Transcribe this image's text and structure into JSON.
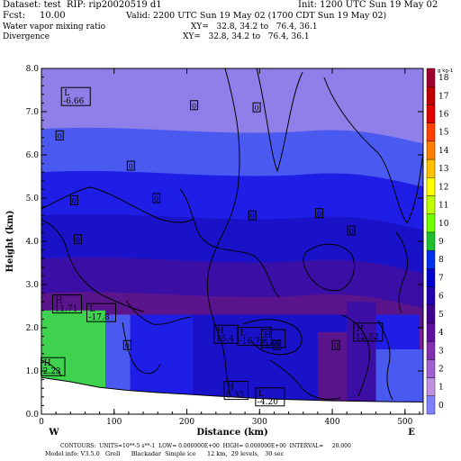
{
  "header": {
    "dataset": "Dataset: test  RIP: rip20020519 d1",
    "init": "Init: 1200 UTC Sun 19 May 02",
    "fcst": "Fcst:     10.00",
    "valid": "Valid: 2200 UTC Sun 19 May 02 (1700 CDT Sun 19 May 02)",
    "field1": "Water vapor mixing ratio",
    "xy1": "XY=   32.8, 34.2 to   76.4, 36.1",
    "field2": "Divergence",
    "xy2": "XY=   32.8, 34.2 to   76.4, 36.1"
  },
  "footer": {
    "line1": "CONTOURS:  UNITS=10**-5 s**-1  LOW= 0.000000E+00  HIGH= 0.000000E+00  INTERVAL=     20.000",
    "line2": "Model info: V3.5.0   Grell      Blackadar  Simple ice      12 km,  29 levels,   30 sec"
  },
  "colors": {
    "mix_levels": [
      "#8f7fe8",
      "#4a5af0",
      "#1e1ee6",
      "#1a12c8",
      "#3b0fa6",
      "#5a148c",
      "#7a1e96",
      "#a050c0",
      "#c080d8",
      "#d8a8ec",
      "#3fd24f"
    ],
    "colorbar": [
      "#8080ff",
      "#c090e0",
      "#a060d0",
      "#8030b0",
      "#6010a0",
      "#400090",
      "#2000b0",
      "#0000d0",
      "#0030f0",
      "#20c030",
      "#70ff00",
      "#c0ff00",
      "#ffff00",
      "#ffc000",
      "#ff8000",
      "#ff4000",
      "#e00000",
      "#c00000",
      "#a00030"
    ]
  },
  "chart_data": {
    "type": "contour-cross-section",
    "xlabel": "Distance (km)",
    "ylabel": "Height (km)",
    "xlim": [
      0,
      525
    ],
    "ylim": [
      0,
      8
    ],
    "x_ticks": [
      "0",
      "100",
      "200",
      "300",
      "400",
      "500"
    ],
    "y_ticks": [
      "0.0",
      "1.0",
      "2.0",
      "3.0",
      "4.0",
      "5.0",
      "6.0",
      "7.0",
      "8.0"
    ],
    "x_end_labels": {
      "left": "W",
      "right": "E"
    },
    "colorbar": {
      "unit": "g kg-1",
      "labels": [
        "0",
        "1",
        "2",
        "3",
        "4",
        "5",
        "6",
        "7",
        "8",
        "9",
        "10",
        "11",
        "12",
        "13",
        "14",
        "15",
        "16",
        "17",
        "18"
      ]
    },
    "shaded_bands": [
      {
        "bottom_km": 6.6,
        "top_km": 8.0,
        "value": 1
      },
      {
        "bottom_km": 5.6,
        "top_km": 6.6,
        "value": 2
      },
      {
        "bottom_km": 4.6,
        "top_km": 5.6,
        "value": 3
      },
      {
        "bottom_km": 3.6,
        "top_km": 4.6,
        "value": 4
      },
      {
        "bottom_km": 2.8,
        "top_km": 3.6,
        "value": 5
      },
      {
        "bottom_km": 2.3,
        "top_km": 2.8,
        "value": 6
      }
    ],
    "extremes": [
      {
        "type": "L",
        "value": "-6.66",
        "x_km": 30,
        "z_km": 7.35
      },
      {
        "type": "H",
        "value": "11.71",
        "x_km": 18,
        "z_km": 2.55
      },
      {
        "type": "L",
        "value": "-17.8",
        "x_km": 65,
        "z_km": 2.35
      },
      {
        "type": "H",
        "value": "15.4",
        "x_km": 240,
        "z_km": 1.85
      },
      {
        "type": "L",
        "value": "-16.75",
        "x_km": 272,
        "z_km": 1.8
      },
      {
        "type": "H",
        "value": "5.06",
        "x_km": 305,
        "z_km": 1.75
      },
      {
        "type": "H",
        "value": "12.52",
        "x_km": 432,
        "z_km": 1.9
      },
      {
        "type": "H",
        "value": "9.33",
        "x_km": 254,
        "z_km": 0.55
      },
      {
        "type": "L",
        "value": "-4.20",
        "x_km": 297,
        "z_km": 0.4
      },
      {
        "type": "H",
        "value": "2.23",
        "x_km": 2,
        "z_km": 1.1
      }
    ],
    "zero_labels": [
      {
        "x_km": 210,
        "z_km": 7.15
      },
      {
        "x_km": 296,
        "z_km": 7.1
      },
      {
        "x_km": 25,
        "z_km": 6.45
      },
      {
        "x_km": 123,
        "z_km": 5.75
      },
      {
        "x_km": 158,
        "z_km": 5.0
      },
      {
        "x_km": 45,
        "z_km": 4.95
      },
      {
        "x_km": 382,
        "z_km": 4.65
      },
      {
        "x_km": 290,
        "z_km": 4.6
      },
      {
        "x_km": 50,
        "z_km": 4.05
      },
      {
        "x_km": 426,
        "z_km": 4.25
      },
      {
        "x_km": 118,
        "z_km": 1.6
      },
      {
        "x_km": 324,
        "z_km": 1.6
      },
      {
        "x_km": 405,
        "z_km": 1.6
      }
    ]
  }
}
